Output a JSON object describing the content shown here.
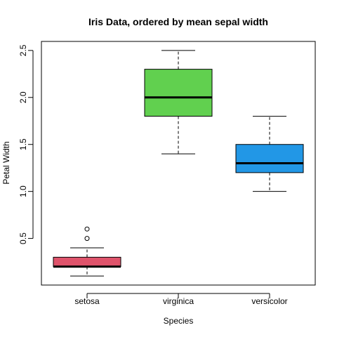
{
  "chart_data": {
    "type": "boxplot",
    "title": "Iris Data, ordered by mean sepal width",
    "xlabel": "Species",
    "ylabel": "Petal Width",
    "categories": [
      "setosa",
      "virginica",
      "versicolor"
    ],
    "boxes": [
      {
        "category": "setosa",
        "whisker_low": 0.1,
        "q1": 0.2,
        "median": 0.2,
        "q3": 0.3,
        "whisker_high": 0.4,
        "outliers": [
          0.5,
          0.6
        ],
        "color": "#DF536B"
      },
      {
        "category": "virginica",
        "whisker_low": 1.4,
        "q1": 1.8,
        "median": 2.0,
        "q3": 2.3,
        "whisker_high": 2.5,
        "outliers": [],
        "color": "#61D04F"
      },
      {
        "category": "versicolor",
        "whisker_low": 1.0,
        "q1": 1.2,
        "median": 1.3,
        "q3": 1.5,
        "whisker_high": 1.8,
        "outliers": [],
        "color": "#2297E6"
      }
    ],
    "yticks": [
      0.5,
      1.0,
      1.5,
      2.0,
      2.5
    ],
    "ytick_labels": [
      "0.5",
      "1.0",
      "1.5",
      "2.0",
      "2.5"
    ],
    "ylim": [
      0.004,
      2.596
    ],
    "grid": false,
    "legend": "none"
  }
}
